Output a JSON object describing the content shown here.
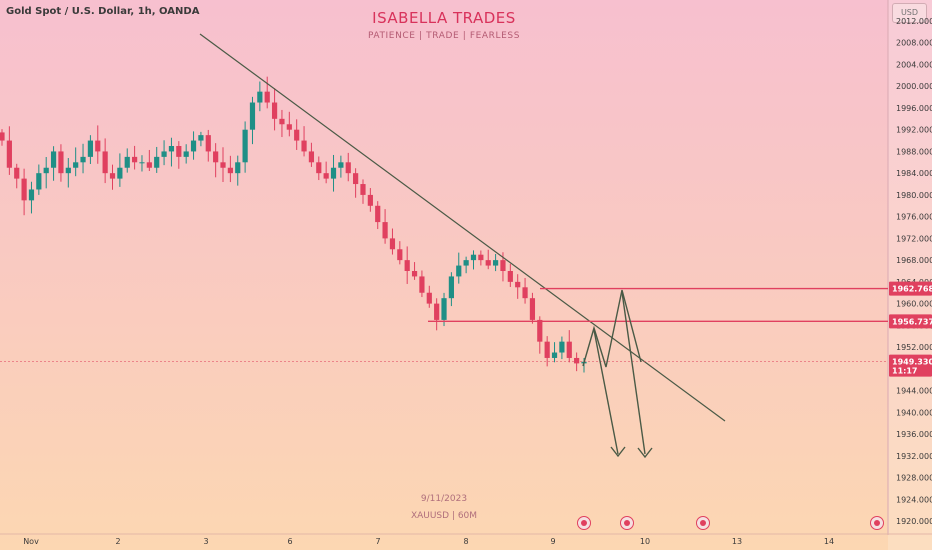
{
  "header": {
    "symbol": "Gold Spot / U.S. Dollar, 1h, OANDA",
    "brand_title": "ISABELLA TRADES",
    "brand_subtitle": "PATIENCE   |   TRADE   |   FEARLESS"
  },
  "watermark": {
    "date": "9/11/2023",
    "symbol_tf": "XAUUSD | 60M"
  },
  "currency": "USD",
  "colors": {
    "up": "#1f8f86",
    "down": "#e0405f",
    "trendline": "#4a5a46",
    "level": "#e0405f",
    "current": "#e0405f"
  },
  "chart_data": {
    "type": "candlestick",
    "symbol": "XAUUSD",
    "timeframe": "1h",
    "y_axis": {
      "ticks": [
        "2012.000",
        "2008.000",
        "2004.000",
        "2000.000",
        "1996.000",
        "1992.000",
        "1988.000",
        "1984.000",
        "1980.000",
        "1976.000",
        "1972.000",
        "1968.000",
        "1964.000",
        "1960.000",
        "1956.000",
        "1952.000",
        "1948.000",
        "1944.000",
        "1940.000",
        "1936.000",
        "1932.000",
        "1928.000",
        "1924.000",
        "1920.000"
      ],
      "range": [
        1918.5,
        2013.5
      ]
    },
    "x_axis": {
      "ticks": [
        "Nov",
        "2",
        "3",
        "6",
        "7",
        "8",
        "9",
        "10",
        "13",
        "14"
      ]
    },
    "price_levels": [
      {
        "label": "1962.768",
        "value": 1962.768
      },
      {
        "label": "1956.737",
        "value": 1956.737
      }
    ],
    "current_price": {
      "label": "1949.330",
      "value": 1949.33,
      "countdown": "11:17"
    },
    "series_close_path": [
      1990,
      1985,
      1983,
      1979,
      1981,
      1984,
      1985,
      1988,
      1984,
      1985,
      1986,
      1987,
      1990,
      1988,
      1984,
      1983,
      1985,
      1987,
      1986,
      1986,
      1985,
      1987,
      1988,
      1989,
      1987,
      1988,
      1990,
      1991,
      1988,
      1986,
      1985,
      1984,
      1986,
      1992,
      1997,
      1999,
      1997,
      1994,
      1993,
      1992,
      1990,
      1988,
      1986,
      1984,
      1983,
      1985,
      1986,
      1984,
      1982,
      1980,
      1978,
      1975,
      1972,
      1970,
      1968,
      1966,
      1965,
      1962,
      1960,
      1957,
      1961,
      1965,
      1967,
      1968,
      1969,
      1968,
      1967,
      1968,
      1966,
      1964,
      1963,
      1961,
      1957,
      1953,
      1950,
      1951,
      1953,
      1950,
      1949,
      1949.3
    ],
    "annotations": [
      {
        "type": "trendline",
        "from": {
          "x": "Nov 2 (early)",
          "y": 2013
        },
        "to": {
          "x": "Nov 10 (late)",
          "y": 1936
        }
      },
      {
        "type": "projection_arrows",
        "description": "zig-zag path with two downward arrows"
      }
    ]
  }
}
